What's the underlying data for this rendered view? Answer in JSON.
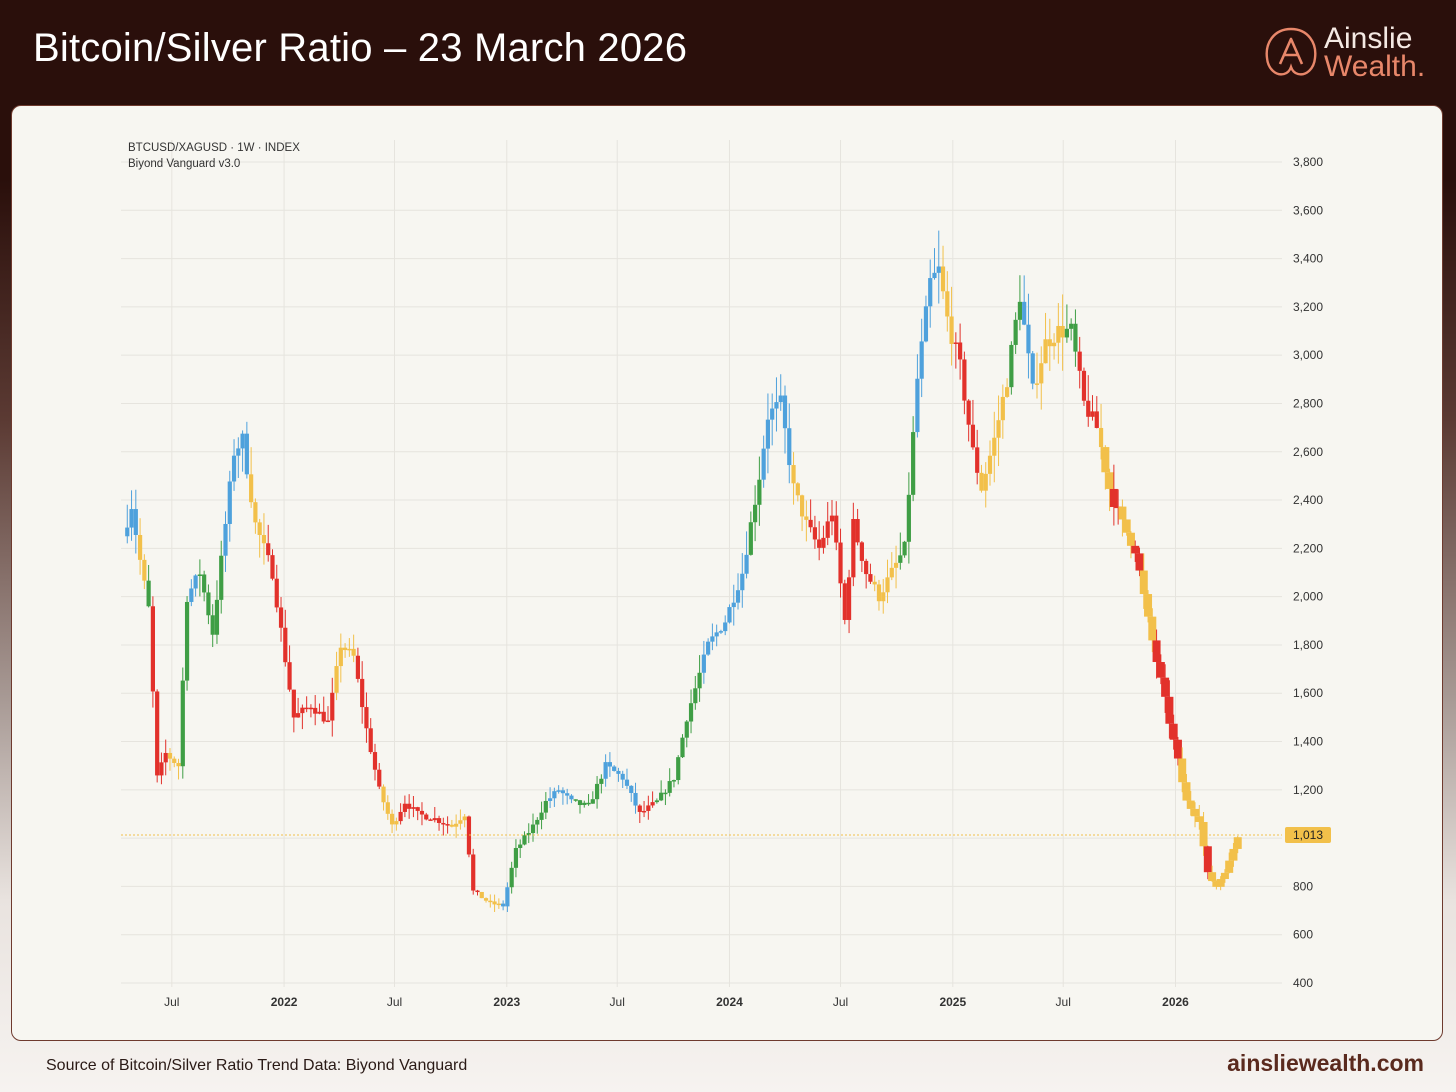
{
  "header": {
    "title": "Bitcoin/Silver Ratio – 23 March 2026",
    "logo_line1": "Ainslie",
    "logo_line2": "Wealth."
  },
  "footer": {
    "source": "Source of Bitcoin/Silver Ratio Trend Data: Biyond Vanguard",
    "site": "ainsliewealth.com"
  },
  "colors": {
    "header_bg": "#2a0f0b",
    "card_border": "#6e3a2e",
    "blue": "#4ea1dc",
    "green": "#3f9e45",
    "yellow": "#f2c04a",
    "red": "#e2312b",
    "logo_accent": "#e8876a"
  },
  "chart_data": {
    "type": "candlestick",
    "symbol": "BTCUSD/XAGUSD · 1W · INDEX",
    "indicator": "Biyond Vanguard v3.0",
    "ylim": [
      400,
      3800
    ],
    "y_ticks": [
      400,
      600,
      800,
      1000,
      1200,
      1400,
      1600,
      1800,
      2000,
      2200,
      2400,
      2600,
      2800,
      3000,
      3200,
      3400,
      3600,
      3800
    ],
    "y_tick_labels": [
      "400",
      "600",
      "800",
      "",
      "1,200",
      "1,400",
      "1,600",
      "1,800",
      "2,000",
      "2,200",
      "2,400",
      "2,600",
      "2,800",
      "3,000",
      "3,200",
      "3,400",
      "3,600",
      "3,800"
    ],
    "x_ticks": [
      {
        "label": "Jul",
        "date": "2021-07-01",
        "bold": false
      },
      {
        "label": "2022",
        "date": "2022-01-01",
        "bold": true
      },
      {
        "label": "Jul",
        "date": "2022-07-01",
        "bold": false
      },
      {
        "label": "2023",
        "date": "2023-01-01",
        "bold": true
      },
      {
        "label": "Jul",
        "date": "2023-07-01",
        "bold": false
      },
      {
        "label": "2024",
        "date": "2024-01-01",
        "bold": true
      },
      {
        "label": "Jul",
        "date": "2024-07-01",
        "bold": false
      },
      {
        "label": "2025",
        "date": "2025-01-01",
        "bold": true
      },
      {
        "label": "Jul",
        "date": "2025-07-01",
        "bold": false
      },
      {
        "label": "2026",
        "date": "2026-01-01",
        "bold": true
      }
    ],
    "x_range": [
      "2021-04-12",
      "2026-04-20"
    ],
    "last_price": 1013,
    "last_price_label": "1,013",
    "grid": true,
    "segments": [
      {
        "start": "2021-04-12",
        "color": "blue"
      },
      {
        "start": "2021-05-10",
        "color": "yellow"
      },
      {
        "start": "2021-05-24",
        "color": "green"
      },
      {
        "start": "2021-05-31",
        "color": "red"
      },
      {
        "start": "2021-06-28",
        "color": "yellow"
      },
      {
        "start": "2021-07-19",
        "color": "green"
      },
      {
        "start": "2021-08-02",
        "color": "blue"
      },
      {
        "start": "2021-08-16",
        "color": "green"
      },
      {
        "start": "2021-09-27",
        "color": "blue"
      },
      {
        "start": "2021-11-08",
        "color": "yellow"
      },
      {
        "start": "2021-12-06",
        "color": "red"
      },
      {
        "start": "2022-03-28",
        "color": "yellow"
      },
      {
        "start": "2022-05-02",
        "color": "red"
      },
      {
        "start": "2022-06-13",
        "color": "yellow"
      },
      {
        "start": "2022-07-11",
        "color": "red"
      },
      {
        "start": "2022-10-03",
        "color": "yellow"
      },
      {
        "start": "2022-10-31",
        "color": "red"
      },
      {
        "start": "2022-11-21",
        "color": "yellow"
      },
      {
        "start": "2022-12-26",
        "color": "blue"
      },
      {
        "start": "2023-01-09",
        "color": "green"
      },
      {
        "start": "2023-03-13",
        "color": "blue"
      },
      {
        "start": "2023-04-24",
        "color": "green"
      },
      {
        "start": "2023-06-12",
        "color": "blue"
      },
      {
        "start": "2023-08-07",
        "color": "red"
      },
      {
        "start": "2023-09-04",
        "color": "green"
      },
      {
        "start": "2023-11-20",
        "color": "blue"
      },
      {
        "start": "2024-02-05",
        "color": "green"
      },
      {
        "start": "2024-02-26",
        "color": "blue"
      },
      {
        "start": "2024-04-15",
        "color": "yellow"
      },
      {
        "start": "2024-05-13",
        "color": "red"
      },
      {
        "start": "2024-08-26",
        "color": "yellow"
      },
      {
        "start": "2024-10-07",
        "color": "green"
      },
      {
        "start": "2024-11-04",
        "color": "blue"
      },
      {
        "start": "2024-12-16",
        "color": "yellow"
      },
      {
        "start": "2025-01-06",
        "color": "red"
      },
      {
        "start": "2025-02-17",
        "color": "yellow"
      },
      {
        "start": "2025-04-07",
        "color": "green"
      },
      {
        "start": "2025-04-28",
        "color": "blue"
      },
      {
        "start": "2025-05-19",
        "color": "yellow"
      },
      {
        "start": "2025-07-07",
        "color": "green"
      },
      {
        "start": "2025-07-28",
        "color": "red"
      },
      {
        "start": "2025-09-01",
        "color": "yellow"
      },
      {
        "start": "2025-09-22",
        "color": "red"
      },
      {
        "start": "2025-10-06",
        "color": "yellow"
      },
      {
        "start": "2025-10-27",
        "color": "red"
      },
      {
        "start": "2025-11-10",
        "color": "yellow"
      },
      {
        "start": "2025-12-01",
        "color": "red"
      },
      {
        "start": "2026-01-12",
        "color": "yellow"
      },
      {
        "start": "2026-02-23",
        "color": "red"
      },
      {
        "start": "2026-03-02",
        "color": "yellow"
      }
    ],
    "path": [
      [
        "2021-04-12",
        2250
      ],
      [
        "2021-04-26",
        2380
      ],
      [
        "2021-05-10",
        2150
      ],
      [
        "2021-05-24",
        1950
      ],
      [
        "2021-06-07",
        1250
      ],
      [
        "2021-06-21",
        1350
      ],
      [
        "2021-07-12",
        1300
      ],
      [
        "2021-07-26",
        2000
      ],
      [
        "2021-08-16",
        2100
      ],
      [
        "2021-09-06",
        1850
      ],
      [
        "2021-10-11",
        2600
      ],
      [
        "2021-10-25",
        2650
      ],
      [
        "2021-11-15",
        2300
      ],
      [
        "2021-12-13",
        2100
      ],
      [
        "2022-01-17",
        1500
      ],
      [
        "2022-02-14",
        1550
      ],
      [
        "2022-03-14",
        1480
      ],
      [
        "2022-04-04",
        1800
      ],
      [
        "2022-04-25",
        1750
      ],
      [
        "2022-05-16",
        1450
      ],
      [
        "2022-06-06",
        1200
      ],
      [
        "2022-06-27",
        1050
      ],
      [
        "2022-07-18",
        1150
      ],
      [
        "2022-08-08",
        1100
      ],
      [
        "2022-09-05",
        1080
      ],
      [
        "2022-10-03",
        1050
      ],
      [
        "2022-10-24",
        1100
      ],
      [
        "2022-11-07",
        780
      ],
      [
        "2022-12-05",
        730
      ],
      [
        "2022-12-26",
        720
      ],
      [
        "2023-01-16",
        950
      ],
      [
        "2023-02-13",
        1050
      ],
      [
        "2023-03-06",
        1150
      ],
      [
        "2023-03-27",
        1200
      ],
      [
        "2023-04-17",
        1150
      ],
      [
        "2023-05-15",
        1130
      ],
      [
        "2023-06-12",
        1300
      ],
      [
        "2023-07-10",
        1250
      ],
      [
        "2023-08-07",
        1100
      ],
      [
        "2023-09-04",
        1150
      ],
      [
        "2023-10-02",
        1250
      ],
      [
        "2023-10-23",
        1500
      ],
      [
        "2023-11-27",
        1800
      ],
      [
        "2023-12-25",
        1900
      ],
      [
        "2024-01-22",
        2100
      ],
      [
        "2024-02-19",
        2500
      ],
      [
        "2024-03-04",
        2750
      ],
      [
        "2024-03-25",
        2800
      ],
      [
        "2024-04-15",
        2450
      ],
      [
        "2024-05-06",
        2300
      ],
      [
        "2024-05-27",
        2200
      ],
      [
        "2024-06-17",
        2350
      ],
      [
        "2024-07-08",
        1900
      ],
      [
        "2024-07-22",
        2300
      ],
      [
        "2024-08-12",
        2100
      ],
      [
        "2024-09-02",
        2000
      ],
      [
        "2024-09-23",
        2100
      ],
      [
        "2024-10-14",
        2200
      ],
      [
        "2024-11-04",
        2900
      ],
      [
        "2024-11-25",
        3300
      ],
      [
        "2024-12-09",
        3350
      ],
      [
        "2024-12-23",
        3150
      ],
      [
        "2025-01-13",
        2950
      ],
      [
        "2025-02-03",
        2600
      ],
      [
        "2025-02-17",
        2450
      ],
      [
        "2025-03-10",
        2650
      ],
      [
        "2025-03-31",
        2900
      ],
      [
        "2025-04-21",
        3250
      ],
      [
        "2025-05-12",
        2850
      ],
      [
        "2025-06-02",
        3050
      ],
      [
        "2025-06-23",
        3100
      ],
      [
        "2025-07-14",
        3100
      ],
      [
        "2025-08-04",
        2800
      ],
      [
        "2025-08-25",
        2700
      ],
      [
        "2025-09-15",
        2450
      ],
      [
        "2025-10-06",
        2300
      ],
      [
        "2025-10-27",
        2200
      ],
      [
        "2025-11-17",
        1900
      ],
      [
        "2025-12-08",
        1650
      ],
      [
        "2025-12-29",
        1400
      ],
      [
        "2026-01-19",
        1150
      ],
      [
        "2026-02-09",
        1080
      ],
      [
        "2026-02-23",
        850
      ],
      [
        "2026-03-09",
        800
      ],
      [
        "2026-03-30",
        900
      ],
      [
        "2026-04-13",
        1013
      ]
    ]
  }
}
